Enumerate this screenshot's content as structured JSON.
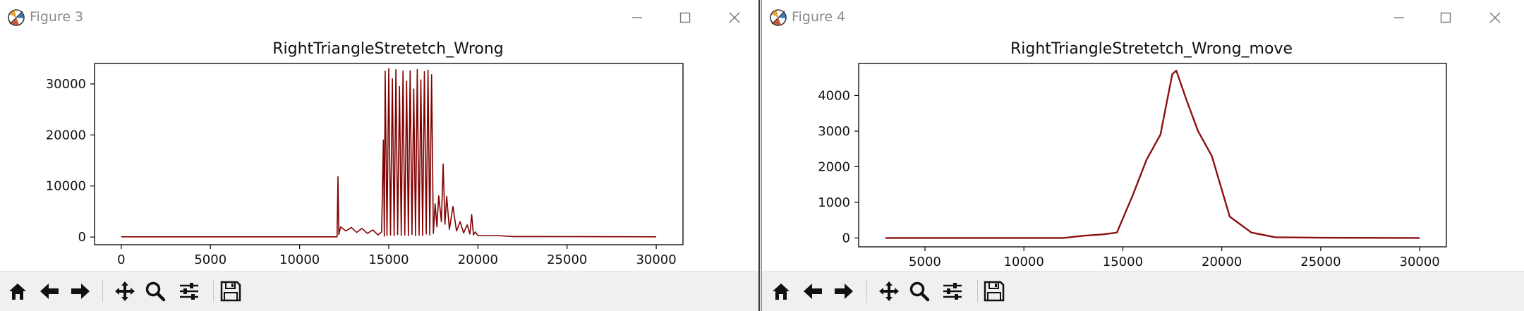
{
  "windows": [
    {
      "title": "Figure 3",
      "chart_data": {
        "type": "line",
        "title": "RightTriangleStretetch_Wrong",
        "xlabel": "",
        "ylabel": "",
        "xlim": [
          -1500,
          31500
        ],
        "ylim": [
          -1500,
          34000
        ],
        "xticks": [
          0,
          5000,
          10000,
          15000,
          20000,
          25000,
          30000
        ],
        "yticks": [
          0,
          10000,
          20000,
          30000
        ],
        "xtick_labels": [
          "0",
          "5000",
          "10000",
          "15000",
          "20000",
          "25000",
          "30000"
        ],
        "ytick_labels": [
          "0",
          "10000",
          "20000",
          "30000"
        ],
        "color": "#800000",
        "series": [
          {
            "values": [
              [
                0,
                50
              ],
              [
                12100,
                50
              ],
              [
                12150,
                11800
              ],
              [
                12200,
                500
              ],
              [
                12300,
                2000
              ],
              [
                12600,
                1200
              ],
              [
                12900,
                1900
              ],
              [
                13200,
                900
              ],
              [
                13500,
                1700
              ],
              [
                13800,
                700
              ],
              [
                14100,
                1400
              ],
              [
                14400,
                400
              ],
              [
                14600,
                1000
              ],
              [
                14700,
                19000
              ],
              [
                14750,
                200
              ],
              [
                14800,
                32500
              ],
              [
                14900,
                300
              ],
              [
                15000,
                33000
              ],
              [
                15100,
                400
              ],
              [
                15200,
                31000
              ],
              [
                15300,
                300
              ],
              [
                15400,
                32800
              ],
              [
                15500,
                500
              ],
              [
                15600,
                29500
              ],
              [
                15700,
                300
              ],
              [
                15800,
                32500
              ],
              [
                15900,
                400
              ],
              [
                16000,
                30500
              ],
              [
                16100,
                300
              ],
              [
                16200,
                32600
              ],
              [
                16300,
                500
              ],
              [
                16400,
                29000
              ],
              [
                16500,
                300
              ],
              [
                16600,
                32800
              ],
              [
                16700,
                400
              ],
              [
                16800,
                30800
              ],
              [
                16900,
                300
              ],
              [
                17000,
                32400
              ],
              [
                17100,
                600
              ],
              [
                17200,
                32700
              ],
              [
                17300,
                400
              ],
              [
                17400,
                31800
              ],
              [
                17500,
                700
              ],
              [
                17600,
                6500
              ],
              [
                17700,
                2000
              ],
              [
                17800,
                8100
              ],
              [
                17950,
                3000
              ],
              [
                18050,
                14300
              ],
              [
                18150,
                2500
              ],
              [
                18250,
                8000
              ],
              [
                18400,
                1500
              ],
              [
                18600,
                6000
              ],
              [
                18800,
                1200
              ],
              [
                19000,
                3000
              ],
              [
                19200,
                800
              ],
              [
                19400,
                2400
              ],
              [
                19550,
                600
              ],
              [
                19650,
                4400
              ],
              [
                19750,
                400
              ],
              [
                19850,
                1000
              ],
              [
                20000,
                300
              ],
              [
                21000,
                300
              ],
              [
                22000,
                100
              ],
              [
                30000,
                50
              ]
            ]
          }
        ]
      }
    },
    {
      "title": "Figure 4",
      "chart_data": {
        "type": "line",
        "title": "RightTriangleStretetch_Wrong_move",
        "xlabel": "",
        "ylabel": "",
        "xlim": [
          1650,
          31350
        ],
        "ylim": [
          -250,
          4900
        ],
        "xticks": [
          5000,
          10000,
          15000,
          20000,
          25000,
          30000
        ],
        "yticks": [
          0,
          1000,
          2000,
          3000,
          4000
        ],
        "xtick_labels": [
          "5000",
          "10000",
          "15000",
          "20000",
          "25000",
          "30000"
        ],
        "ytick_labels": [
          "0",
          "1000",
          "2000",
          "3000",
          "4000"
        ],
        "color": "#8b1010",
        "series": [
          {
            "values": [
              [
                3000,
                0
              ],
              [
                12000,
                0
              ],
              [
                13000,
                60
              ],
              [
                14000,
                100
              ],
              [
                14700,
                150
              ],
              [
                15500,
                1200
              ],
              [
                16200,
                2200
              ],
              [
                16900,
                2900
              ],
              [
                17500,
                4600
              ],
              [
                17700,
                4700
              ],
              [
                18200,
                3900
              ],
              [
                18800,
                3000
              ],
              [
                19500,
                2300
              ],
              [
                20400,
                600
              ],
              [
                21500,
                150
              ],
              [
                22700,
                20
              ],
              [
                25000,
                5
              ],
              [
                30000,
                0
              ]
            ]
          }
        ]
      }
    }
  ]
}
